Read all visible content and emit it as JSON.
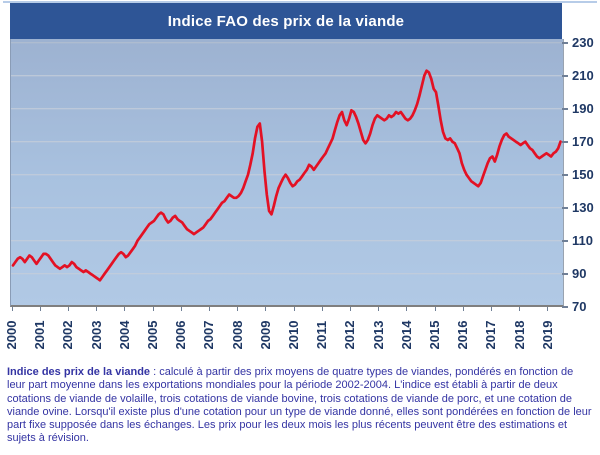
{
  "title": "Indice FAO des prix de la viande",
  "footer": {
    "lead": "Indice des prix de la viande",
    "separator": " : ",
    "body": "calculé à partir des prix moyens de quatre types de viandes, pondérés en fonction de leur part moyenne dans les exportations mondiales pour la période 2002-2004. L'indice est établi à partir de deux cotations de viande de volaille, trois cotations de viande bovine, trois cotations de viande de porc, et une cotation de viande ovine. Lorsqu'il existe plus d'une cotation pour un type de viande donné, elles sont pondérées en fonction de leur part fixe supposée dans les échanges. Les prix pour les deux mois les plus récents peuvent être des estimations et sujets à révision."
  },
  "colors": {
    "title_bg": "#2E5596",
    "title_text": "#FFFFFF",
    "plot_bg_top": "#9DB2D1",
    "plot_bg_bottom": "#B1C9E5",
    "gridline": "#C6CEDA",
    "line": "#E31124",
    "axis_text": "#1F3864",
    "footer_text": "#3434A3",
    "axis_line": "#7F7F7F"
  },
  "chart_data": {
    "type": "line",
    "title": "Indice FAO des prix de la viande",
    "xlabel": "",
    "ylabel": "",
    "ylim": [
      70,
      230
    ],
    "y_ticks": [
      230,
      210,
      190,
      170,
      150,
      130,
      110,
      90,
      70
    ],
    "x_tick_labels": [
      "2000",
      "2001",
      "2002",
      "2003",
      "2004",
      "2005",
      "2006",
      "2007",
      "2008",
      "2009",
      "2010",
      "2011",
      "2012",
      "2013",
      "2014",
      "2015",
      "2016",
      "2017",
      "2018",
      "2019"
    ],
    "grid": "horizontal",
    "legend": "none",
    "frequency": "monthly",
    "series": [
      {
        "name": "Indice FAO des prix de la viande",
        "start": "2000-01",
        "end": "2019-06",
        "values": [
          95,
          97,
          99,
          100,
          99,
          97,
          99,
          101,
          100,
          98,
          96,
          98,
          100,
          102,
          102,
          101,
          99,
          97,
          95,
          94,
          93,
          94,
          95,
          94,
          95,
          97,
          96,
          94,
          93,
          92,
          91,
          92,
          91,
          90,
          89,
          88,
          87,
          86,
          88,
          90,
          92,
          94,
          96,
          98,
          100,
          102,
          103,
          102,
          100,
          101,
          103,
          105,
          107,
          110,
          112,
          114,
          116,
          118,
          120,
          121,
          122,
          124,
          126,
          127,
          126,
          123,
          121,
          122,
          124,
          125,
          123,
          122,
          121,
          119,
          117,
          116,
          115,
          114,
          115,
          116,
          117,
          118,
          120,
          122,
          123,
          125,
          127,
          129,
          131,
          133,
          134,
          136,
          138,
          137,
          136,
          136,
          137,
          139,
          142,
          146,
          150,
          156,
          163,
          172,
          179,
          181,
          170,
          152,
          138,
          128,
          126,
          131,
          137,
          142,
          145,
          148,
          150,
          148,
          145,
          143,
          144,
          146,
          147,
          149,
          151,
          153,
          156,
          155,
          153,
          155,
          157,
          159,
          161,
          163,
          166,
          169,
          172,
          177,
          182,
          186,
          188,
          183,
          180,
          184,
          189,
          188,
          185,
          181,
          176,
          171,
          169,
          171,
          175,
          180,
          184,
          186,
          185,
          184,
          183,
          184,
          186,
          185,
          186,
          188,
          187,
          188,
          186,
          184,
          183,
          184,
          186,
          189,
          193,
          198,
          204,
          210,
          213,
          212,
          208,
          202,
          200,
          192,
          183,
          176,
          172,
          171,
          172,
          170,
          169,
          166,
          163,
          157,
          153,
          150,
          148,
          146,
          145,
          144,
          143,
          145,
          149,
          153,
          157,
          160,
          161,
          158,
          162,
          167,
          171,
          174,
          175,
          173,
          172,
          171,
          170,
          169,
          168,
          169,
          170,
          168,
          166,
          165,
          163,
          161,
          160,
          161,
          162,
          163,
          162,
          161,
          163,
          164,
          166,
          170
        ]
      }
    ]
  }
}
